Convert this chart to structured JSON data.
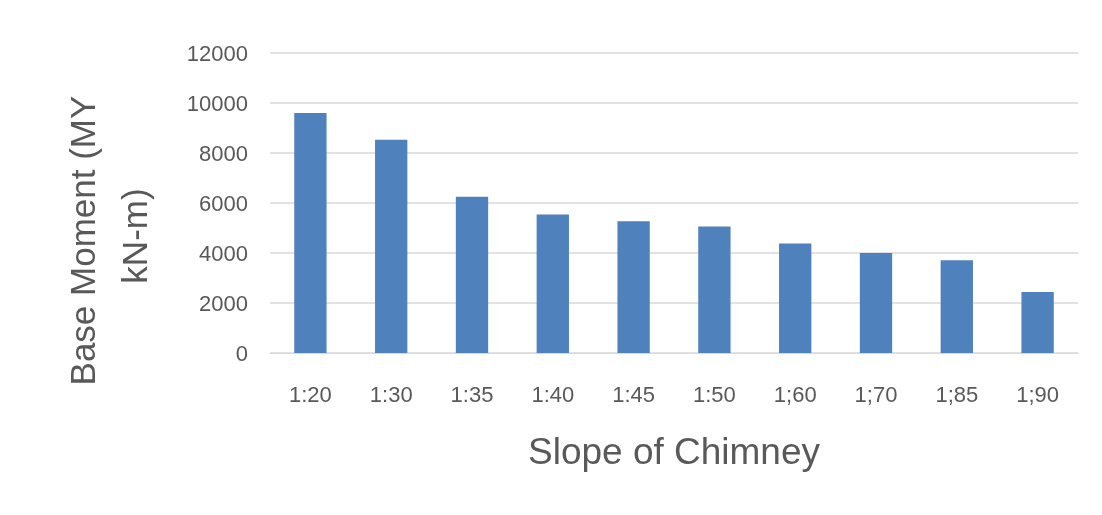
{
  "chart_data": {
    "type": "bar",
    "xlabel": "Slope of Chimney",
    "ylabel": "Base Moment (MY kN-m)",
    "categories": [
      "1:20",
      "1:30",
      "1:35",
      "1:40",
      "1:45",
      "1:50",
      "1;60",
      "1;70",
      "1;85",
      "1;90"
    ],
    "values": [
      9600,
      8530,
      6250,
      5540,
      5270,
      5060,
      4380,
      4000,
      3710,
      2440
    ],
    "color": "#4f81bd",
    "ylim": [
      0,
      12000
    ],
    "yticks": [
      0,
      2000,
      4000,
      6000,
      8000,
      10000,
      12000
    ],
    "grid": "y"
  }
}
